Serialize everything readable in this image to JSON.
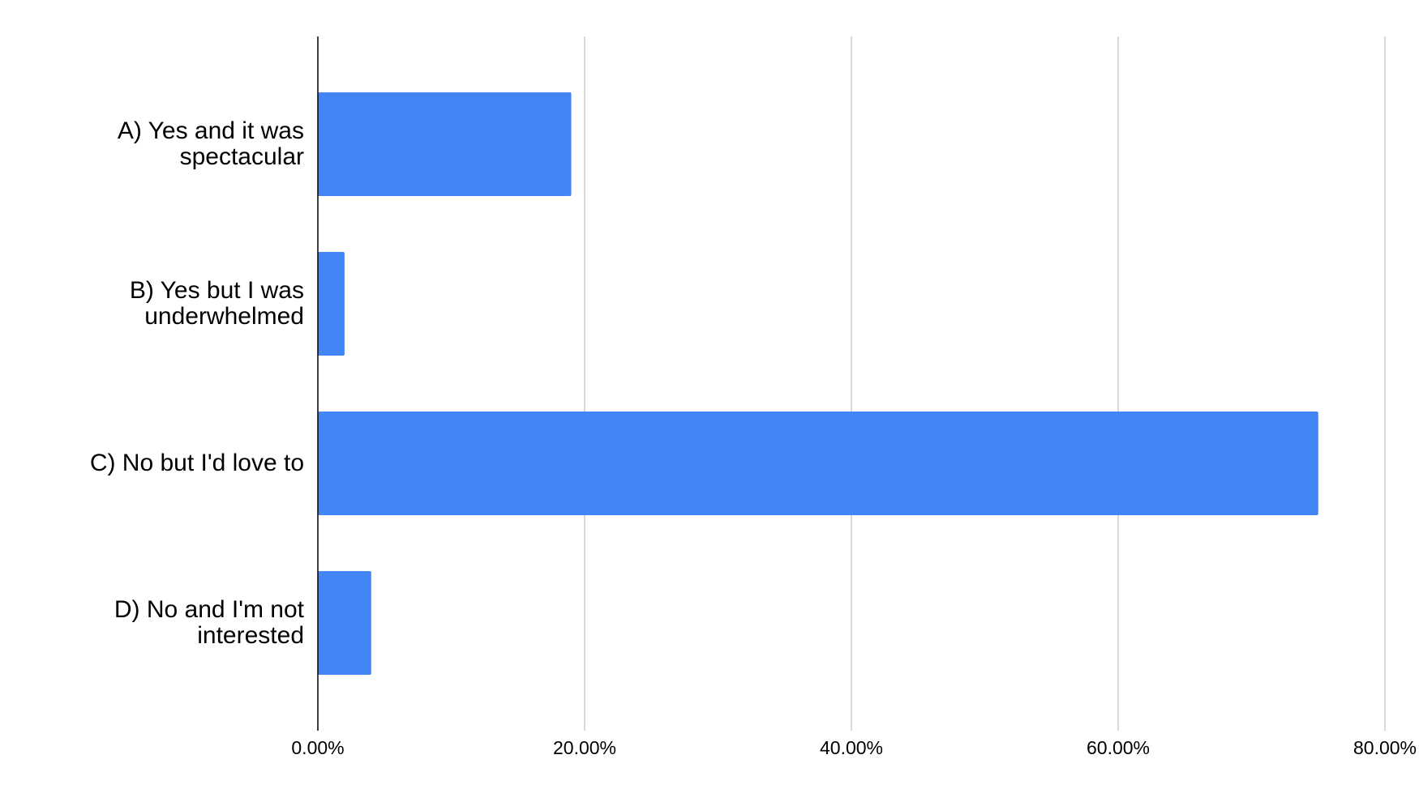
{
  "chart_data": {
    "type": "hbar",
    "categories": [
      "A) Yes and it was spectacular",
      "B) Yes but I was underwhelmed",
      "C) No but I'd love to",
      "D) No and I'm not interested"
    ],
    "values": [
      19,
      2,
      75,
      4
    ],
    "color": "#4285f4",
    "xlim": [
      0,
      80
    ],
    "xticks": [
      {
        "value": 0,
        "label": "0.00%"
      },
      {
        "value": 20,
        "label": "20.00%"
      },
      {
        "value": 40,
        "label": "40.00%"
      },
      {
        "value": 60,
        "label": "60.00%"
      },
      {
        "value": 80,
        "label": "80.00%"
      }
    ],
    "grid": true
  }
}
